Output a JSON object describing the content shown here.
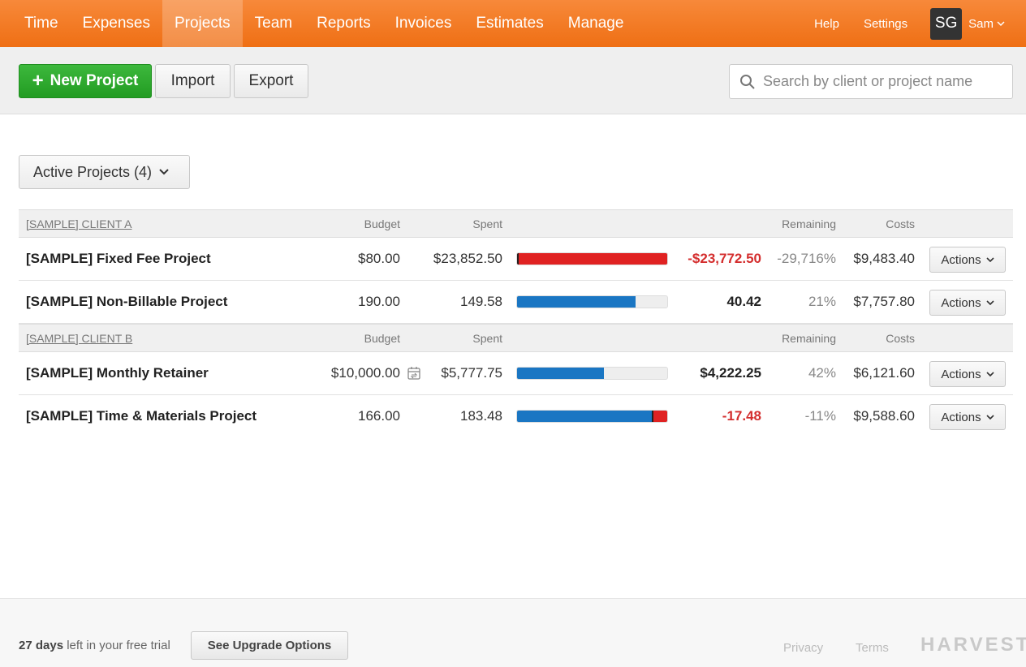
{
  "nav": {
    "items": [
      "Time",
      "Expenses",
      "Projects",
      "Team",
      "Reports",
      "Invoices",
      "Estimates",
      "Manage"
    ],
    "active": "Projects",
    "help": "Help",
    "settings": "Settings",
    "avatar_initials": "SG",
    "user_name": "Sam"
  },
  "toolbar": {
    "new_project": "New Project",
    "import": "Import",
    "export": "Export",
    "search_placeholder": "Search by client or project name"
  },
  "filter": {
    "label": "Active Projects (4)"
  },
  "columns": {
    "budget": "Budget",
    "spent": "Spent",
    "remaining": "Remaining",
    "costs": "Costs"
  },
  "groups": [
    {
      "client": "[SAMPLE] CLIENT A",
      "projects": [
        {
          "name": "[SAMPLE] Fixed Fee Project",
          "budget": "$80.00",
          "spent": "$23,852.50",
          "progress": 1.0,
          "over_budget": true,
          "marker": 0.0,
          "remaining": "-$23,772.50",
          "remaining_pct": "-29,716%",
          "costs": "$9,483.40",
          "actions": "Actions"
        },
        {
          "name": "[SAMPLE] Non-Billable Project",
          "budget": "190.00",
          "spent": "149.58",
          "progress": 0.79,
          "over_budget": false,
          "marker": null,
          "remaining": "40.42",
          "remaining_pct": "21%",
          "costs": "$7,757.80",
          "actions": "Actions"
        }
      ]
    },
    {
      "client": "[SAMPLE] CLIENT B",
      "projects": [
        {
          "name": "[SAMPLE] Monthly Retainer",
          "budget": "$10,000.00",
          "recurring": true,
          "spent": "$5,777.75",
          "progress": 0.58,
          "over_budget": false,
          "marker": null,
          "remaining": "$4,222.25",
          "remaining_pct": "42%",
          "costs": "$6,121.60",
          "actions": "Actions"
        },
        {
          "name": "[SAMPLE] Time & Materials Project",
          "budget": "166.00",
          "spent": "183.48",
          "progress": 0.905,
          "over_budget": true,
          "marker": 0.905,
          "remaining": "-17.48",
          "remaining_pct": "-11%",
          "costs": "$9,588.60",
          "actions": "Actions"
        }
      ]
    }
  ],
  "footer": {
    "trial_days": "27 days",
    "trial_text": "left in your free trial",
    "upgrade": "See Upgrade Options",
    "privacy": "Privacy",
    "terms": "Terms",
    "logo": "HARVEST"
  },
  "colors": {
    "nav": "#f07a26",
    "primary": "#229c22",
    "bar": "#1a76c3",
    "over": "#e02222",
    "negative": "#d42e2e"
  }
}
